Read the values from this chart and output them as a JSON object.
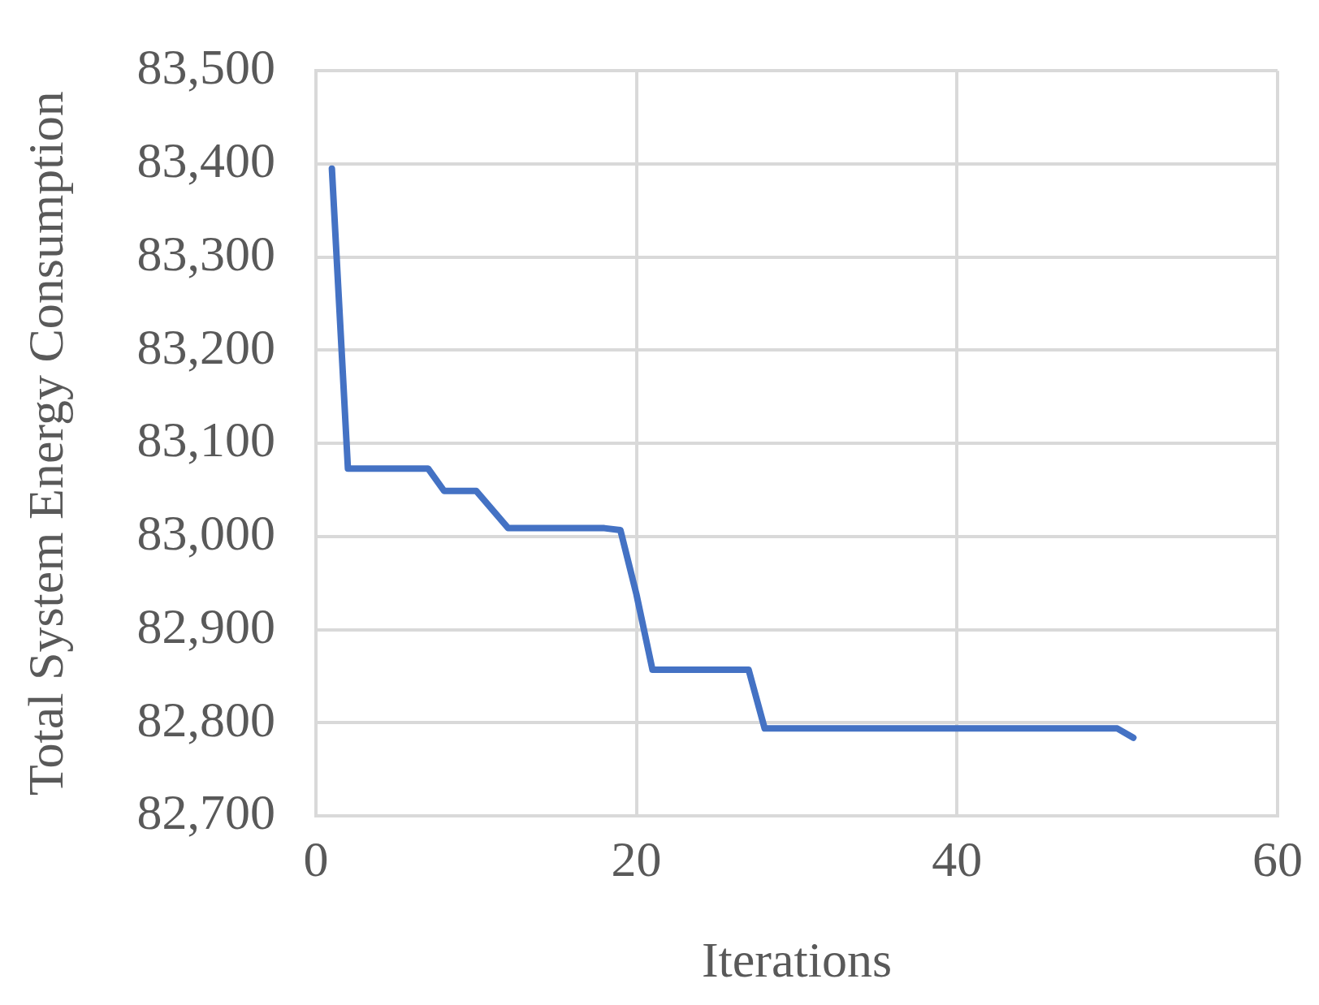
{
  "chart_data": {
    "type": "line",
    "xlabel": "Iterations",
    "ylabel": "Total System Energy Consumption",
    "x": [
      1,
      2,
      7,
      8,
      10,
      12,
      18,
      19,
      20,
      21,
      27,
      28,
      50,
      51
    ],
    "series": [
      {
        "color": "#4472c4",
        "values": [
          83395,
          83073,
          83073,
          83049,
          83049,
          83009,
          83009,
          83007,
          82938,
          82857,
          82857,
          82794,
          82794,
          82784
        ]
      }
    ],
    "xlim": [
      0,
      60
    ],
    "xticks": [
      0,
      20,
      40,
      60
    ],
    "ylim": [
      82700,
      83500
    ],
    "yticks": [
      {
        "value": 82700,
        "label": "82,700"
      },
      {
        "value": 82800,
        "label": "82,800"
      },
      {
        "value": 82900,
        "label": "82,900"
      },
      {
        "value": 83000,
        "label": "83,000"
      },
      {
        "value": 83100,
        "label": "83,100"
      },
      {
        "value": 83200,
        "label": "83,200"
      },
      {
        "value": 83300,
        "label": "83,300"
      },
      {
        "value": 83400,
        "label": "83,400"
      },
      {
        "value": 83500,
        "label": "83,500"
      }
    ],
    "grid": true,
    "marker": "none",
    "line_style": "solid"
  }
}
